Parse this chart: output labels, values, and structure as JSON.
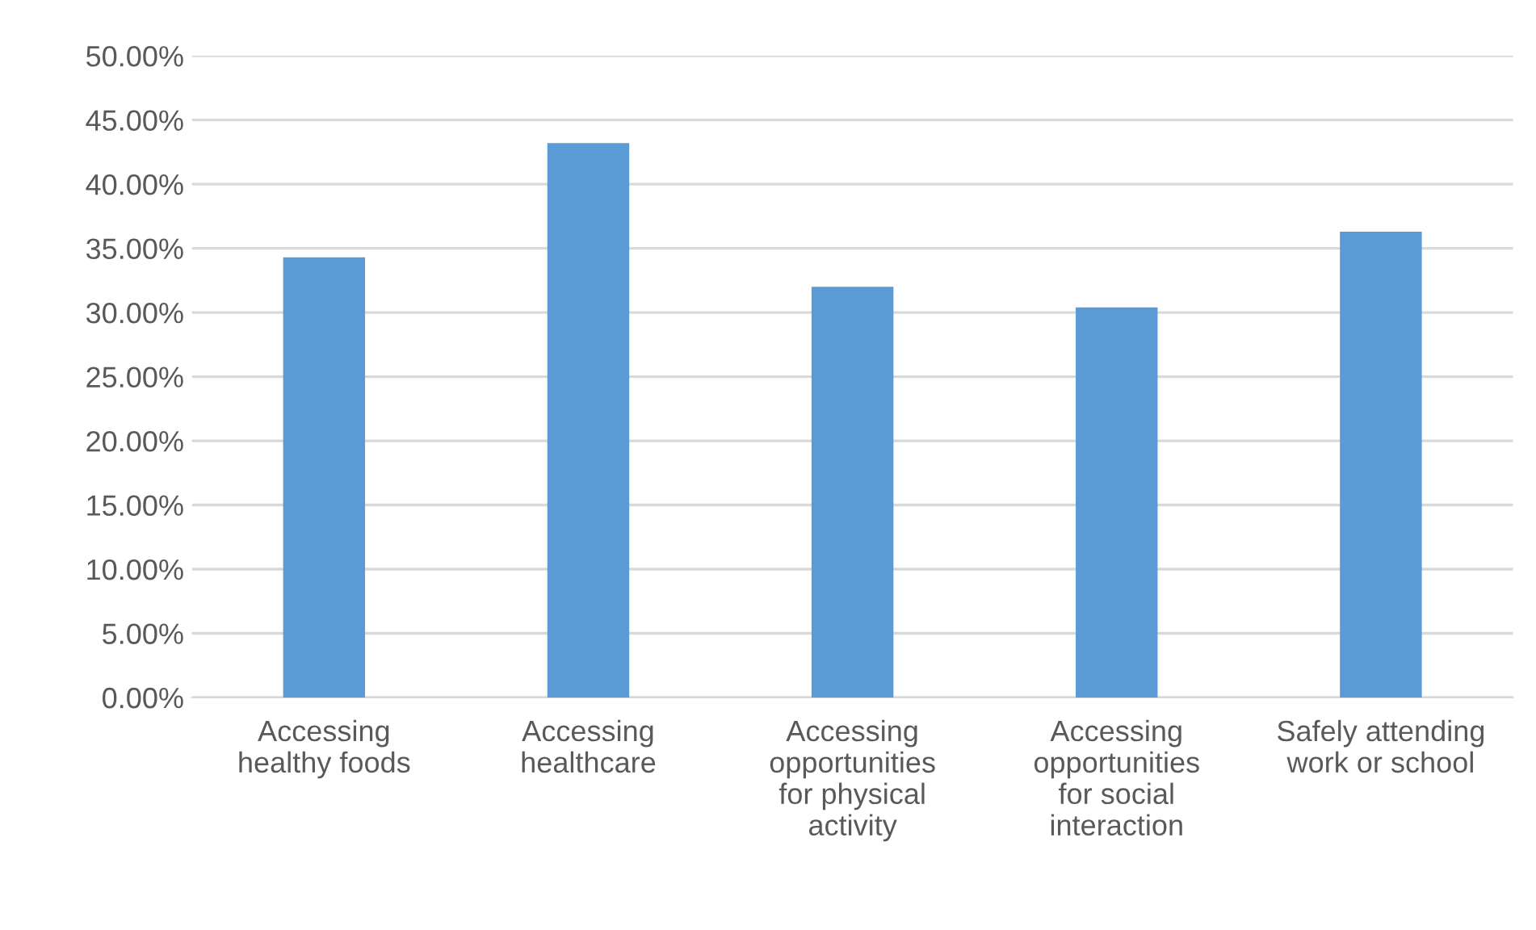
{
  "chart_data": {
    "type": "bar",
    "categories": [
      "Accessing\nhealthy foods",
      "Accessing\nhealthcare",
      "Accessing\nopportunities\nfor physical\nactivity",
      "Accessing\nopportunities\nfor social\ninteraction",
      "Safely attending\nwork or school"
    ],
    "values": [
      34.3,
      43.2,
      32.0,
      30.4,
      36.3
    ],
    "color": "#5b9bd5",
    "ylim": [
      0,
      50
    ],
    "yticks": [
      {
        "value": 0,
        "label": "0.00%"
      },
      {
        "value": 5,
        "label": "5.00%"
      },
      {
        "value": 10,
        "label": "10.00%"
      },
      {
        "value": 15,
        "label": "15.00%"
      },
      {
        "value": 20,
        "label": "20.00%"
      },
      {
        "value": 25,
        "label": "25.00%"
      },
      {
        "value": 30,
        "label": "30.00%"
      },
      {
        "value": 35,
        "label": "35.00%"
      },
      {
        "value": 40,
        "label": "40.00%"
      },
      {
        "value": 45,
        "label": "45.00%"
      },
      {
        "value": 50,
        "label": "50.00%"
      }
    ],
    "grid": "y",
    "legend": false
  }
}
